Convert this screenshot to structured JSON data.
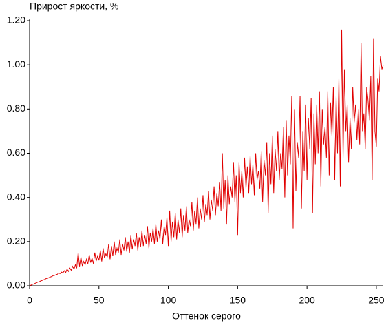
{
  "chart_data": {
    "type": "line",
    "title": "Прирост яркости, %",
    "xlabel": "Оттенок серого",
    "grid": false,
    "xlim": [
      0,
      255
    ],
    "ylim": [
      0,
      1.2
    ],
    "xticks": [
      0,
      50,
      100,
      150,
      200,
      250
    ],
    "yticks": [
      {
        "value": 0,
        "label": "0.00"
      },
      {
        "value": 0.2,
        "label": "0.20"
      },
      {
        "value": 0.4,
        "label": "0.40"
      },
      {
        "value": 0.6,
        "label": "0.60"
      },
      {
        "value": 0.8,
        "label": "0.80"
      },
      {
        "value": 1.0,
        "label": "1.00"
      },
      {
        "value": 1.2,
        "label": "1.20"
      }
    ],
    "x": [
      0,
      1,
      2,
      3,
      4,
      5,
      6,
      7,
      8,
      9,
      10,
      11,
      12,
      13,
      14,
      15,
      16,
      17,
      18,
      19,
      20,
      21,
      22,
      23,
      24,
      25,
      26,
      27,
      28,
      29,
      30,
      31,
      32,
      33,
      34,
      35,
      36,
      37,
      38,
      39,
      40,
      41,
      42,
      43,
      44,
      45,
      46,
      47,
      48,
      49,
      50,
      51,
      52,
      53,
      54,
      55,
      56,
      57,
      58,
      59,
      60,
      61,
      62,
      63,
      64,
      65,
      66,
      67,
      68,
      69,
      70,
      71,
      72,
      73,
      74,
      75,
      76,
      77,
      78,
      79,
      80,
      81,
      82,
      83,
      84,
      85,
      86,
      87,
      88,
      89,
      90,
      91,
      92,
      93,
      94,
      95,
      96,
      97,
      98,
      99,
      100,
      101,
      102,
      103,
      104,
      105,
      106,
      107,
      108,
      109,
      110,
      111,
      112,
      113,
      114,
      115,
      116,
      117,
      118,
      119,
      120,
      121,
      122,
      123,
      124,
      125,
      126,
      127,
      128,
      129,
      130,
      131,
      132,
      133,
      134,
      135,
      136,
      137,
      138,
      139,
      140,
      141,
      142,
      143,
      144,
      145,
      146,
      147,
      148,
      149,
      150,
      151,
      152,
      153,
      154,
      155,
      156,
      157,
      158,
      159,
      160,
      161,
      162,
      163,
      164,
      165,
      166,
      167,
      168,
      169,
      170,
      171,
      172,
      173,
      174,
      175,
      176,
      177,
      178,
      179,
      180,
      181,
      182,
      183,
      184,
      185,
      186,
      187,
      188,
      189,
      190,
      191,
      192,
      193,
      194,
      195,
      196,
      197,
      198,
      199,
      200,
      201,
      202,
      203,
      204,
      205,
      206,
      207,
      208,
      209,
      210,
      211,
      212,
      213,
      214,
      215,
      216,
      217,
      218,
      219,
      220,
      221,
      222,
      223,
      224,
      225,
      226,
      227,
      228,
      229,
      230,
      231,
      232,
      233,
      234,
      235,
      236,
      237,
      238,
      239,
      240,
      241,
      242,
      243,
      244,
      245,
      246,
      247,
      248,
      249,
      250,
      251,
      252,
      253,
      254,
      255
    ],
    "series": [
      {
        "color": "#e00000",
        "values": [
          0.0,
          0.003,
          0.006,
          0.008,
          0.011,
          0.014,
          0.017,
          0.018,
          0.022,
          0.024,
          0.027,
          0.029,
          0.033,
          0.034,
          0.037,
          0.04,
          0.042,
          0.046,
          0.047,
          0.05,
          0.052,
          0.057,
          0.055,
          0.062,
          0.058,
          0.068,
          0.06,
          0.075,
          0.065,
          0.08,
          0.07,
          0.088,
          0.075,
          0.095,
          0.082,
          0.15,
          0.088,
          0.13,
          0.09,
          0.11,
          0.095,
          0.12,
          0.1,
          0.14,
          0.105,
          0.125,
          0.1,
          0.15,
          0.112,
          0.135,
          0.115,
          0.16,
          0.11,
          0.17,
          0.125,
          0.145,
          0.13,
          0.19,
          0.12,
          0.18,
          0.135,
          0.2,
          0.14,
          0.17,
          0.15,
          0.21,
          0.14,
          0.19,
          0.16,
          0.22,
          0.155,
          0.2,
          0.15,
          0.23,
          0.165,
          0.21,
          0.18,
          0.24,
          0.16,
          0.22,
          0.175,
          0.25,
          0.18,
          0.23,
          0.19,
          0.27,
          0.17,
          0.24,
          0.2,
          0.26,
          0.19,
          0.28,
          0.2,
          0.25,
          0.21,
          0.3,
          0.19,
          0.27,
          0.23,
          0.31,
          0.18,
          0.34,
          0.2,
          0.29,
          0.22,
          0.33,
          0.21,
          0.3,
          0.24,
          0.35,
          0.22,
          0.32,
          0.25,
          0.36,
          0.24,
          0.3,
          0.27,
          0.38,
          0.25,
          0.34,
          0.28,
          0.4,
          0.26,
          0.35,
          0.3,
          0.41,
          0.29,
          0.37,
          0.32,
          0.43,
          0.3,
          0.39,
          0.34,
          0.45,
          0.32,
          0.42,
          0.36,
          0.47,
          0.34,
          0.6,
          0.35,
          0.48,
          0.28,
          0.5,
          0.37,
          0.45,
          0.4,
          0.56,
          0.38,
          0.5,
          0.23,
          0.56,
          0.42,
          0.52,
          0.4,
          0.58,
          0.44,
          0.54,
          0.42,
          0.59,
          0.46,
          0.55,
          0.41,
          0.6,
          0.48,
          0.52,
          0.44,
          0.61,
          0.38,
          0.57,
          0.5,
          0.65,
          0.33,
          0.6,
          0.46,
          0.68,
          0.42,
          0.62,
          0.52,
          0.7,
          0.48,
          0.6,
          0.53,
          0.72,
          0.4,
          0.75,
          0.5,
          0.68,
          0.55,
          0.86,
          0.26,
          0.8,
          0.43,
          0.65,
          0.58,
          0.86,
          0.35,
          0.7,
          0.52,
          0.82,
          0.48,
          0.76,
          0.62,
          0.85,
          0.33,
          0.78,
          0.55,
          0.82,
          0.6,
          0.88,
          0.45,
          0.8,
          0.64,
          0.72,
          0.58,
          0.88,
          0.5,
          0.83,
          0.68,
          0.9,
          0.48,
          0.86,
          0.6,
          0.94,
          0.45,
          1.16,
          0.58,
          0.98,
          0.7,
          0.82,
          0.56,
          0.76,
          0.62,
          0.9,
          0.74,
          0.82,
          0.66,
          0.8,
          0.64,
          1.1,
          0.7,
          0.78,
          0.62,
          0.9,
          0.84,
          0.75,
          0.95,
          0.48,
          1.12,
          0.7,
          0.63,
          0.94,
          0.88,
          1.04,
          0.98,
          1.0
        ]
      }
    ]
  }
}
